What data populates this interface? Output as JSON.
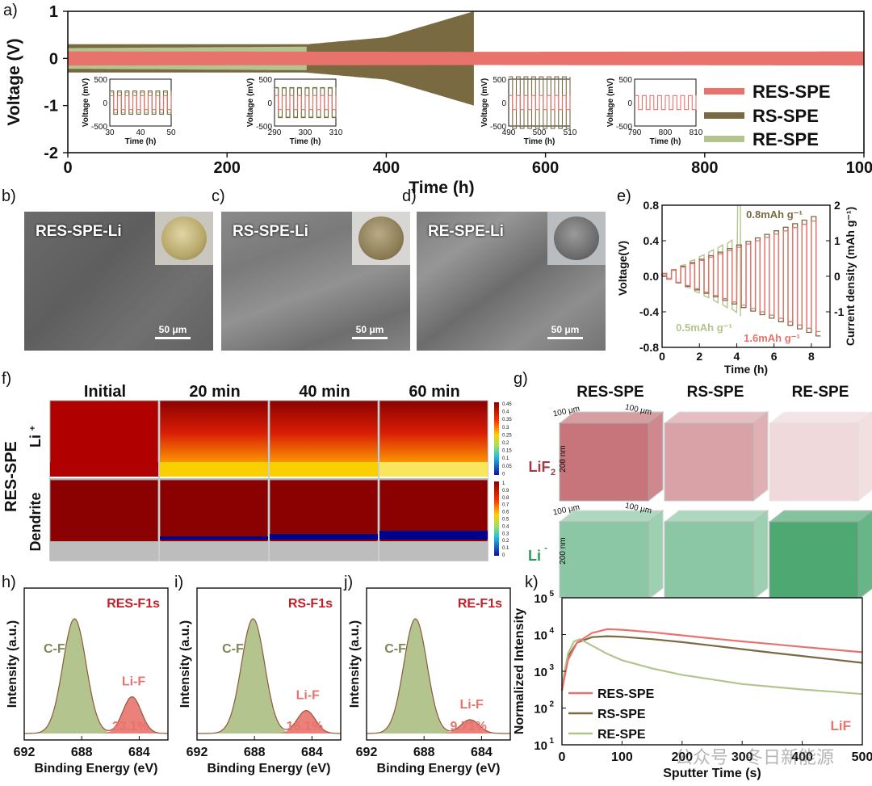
{
  "panel_labels": {
    "a": "a)",
    "b": "b)",
    "c": "c)",
    "d": "d)",
    "e": "e)",
    "f": "f)",
    "g": "g)",
    "h": "h)",
    "i": "i)",
    "j": "j)",
    "k": "k)"
  },
  "colors": {
    "res": "#e8736d",
    "rs": "#7a6a42",
    "re": "#b3c48e"
  },
  "chart_data": [
    {
      "id": "a",
      "type": "line",
      "xlabel": "Time (h)",
      "ylabel": "Voltage (V)",
      "xlim": [
        0,
        1000
      ],
      "ylim": [
        -2,
        1
      ],
      "xticks": [
        "0",
        "200",
        "400",
        "600",
        "800",
        "1000"
      ],
      "yticks": [
        "1",
        "0",
        "-1",
        "-2"
      ],
      "legend_position": "right",
      "series": [
        {
          "name": "RES-SPE",
          "duration_h": 1000,
          "amplitude_V": [
            [
              0,
              0.15
            ],
            [
              500,
              0.14
            ],
            [
              1000,
              0.15
            ]
          ]
        },
        {
          "name": "RS-SPE",
          "duration_h": 510,
          "amplitude_V": [
            [
              0,
              0.3
            ],
            [
              300,
              0.3
            ],
            [
              400,
              0.45
            ],
            [
              470,
              0.8
            ],
            [
              510,
              1.0
            ]
          ]
        },
        {
          "name": "RE-SPE",
          "duration_h": 300,
          "amplitude_V": [
            [
              0,
              0.22
            ],
            [
              300,
              0.25
            ]
          ]
        }
      ],
      "insets": [
        {
          "xlabel": "Time (h)",
          "ylabel": "Voltage (mV)",
          "xlim": [
            30,
            50
          ],
          "xticks": [
            "30",
            "40",
            "50"
          ],
          "yticks": [
            "500",
            "0",
            "-500"
          ],
          "amp_mV": {
            "RES-SPE": 150,
            "RS-SPE": 250,
            "RE-SPE": 220
          }
        },
        {
          "xlabel": "Time (h)",
          "ylabel": "Voltage (mV)",
          "xlim": [
            290,
            310
          ],
          "xticks": [
            "290",
            "300",
            "310"
          ],
          "yticks": [
            "500",
            "0",
            "-500"
          ],
          "amp_mV": {
            "RES-SPE": 150,
            "RS-SPE": 320,
            "RE-SPE": 300
          }
        },
        {
          "xlabel": "Time (h)",
          "ylabel": "Voltage (mV)",
          "xlim": [
            490,
            510
          ],
          "xticks": [
            "490",
            "500",
            "510"
          ],
          "yticks": [
            "500",
            "0",
            "-500"
          ],
          "amp_mV": {
            "RES-SPE": 150,
            "RS-SPE": 550
          }
        },
        {
          "xlabel": "Time (h)",
          "ylabel": "Voltage (mV)",
          "xlim": [
            790,
            810
          ],
          "xticks": [
            "790",
            "800",
            "810"
          ],
          "yticks": [
            "500",
            "0",
            "-500"
          ],
          "amp_mV": {
            "RES-SPE": 150
          }
        }
      ]
    },
    {
      "id": "e",
      "type": "line",
      "xlabel": "Time (h)",
      "ylabel": "Voltage(V)",
      "y2label": "Current density (mAh g⁻¹)",
      "xlim": [
        0,
        9
      ],
      "ylim": [
        -0.8,
        0.8
      ],
      "y2lim": [
        -2,
        2
      ],
      "xticks": [
        "0",
        "2",
        "4",
        "6",
        "8"
      ],
      "yticks": [
        "0.8",
        "0.4",
        "0.0",
        "-0.4",
        "-0.8"
      ],
      "y2ticks": [
        "2",
        "1",
        "0",
        "-1"
      ],
      "annotations": [
        "0.8mAh g⁻¹",
        "0.5mAh g⁻¹",
        "1.6mAh g⁻¹"
      ],
      "series": [
        {
          "name": "RES-SPE",
          "step_h": 0.5,
          "end_h": 8.6,
          "current_steps_mAh_g": [
            0.1,
            0.2,
            0.3,
            0.4,
            0.5,
            0.6,
            0.7,
            0.8,
            0.9,
            1.0,
            1.1,
            1.2,
            1.3,
            1.4,
            1.5,
            1.6
          ]
        },
        {
          "name": "RS-SPE",
          "end_h": 8.6
        },
        {
          "name": "RE-SPE",
          "end_h": 4.2
        }
      ]
    },
    {
      "id": "h",
      "type": "area",
      "title": "RES-F1s",
      "xlabel": "Binding Energy (eV)",
      "ylabel": "Intensity (a.u.)",
      "xlim": [
        692,
        682
      ],
      "xticks": [
        "692",
        "688",
        "684"
      ],
      "peaks": [
        {
          "name": "C-F",
          "center_eV": 688.5,
          "height": 1.0,
          "fwhm": 1.9
        },
        {
          "name": "Li-F",
          "center_eV": 684.5,
          "height": 0.32,
          "fwhm": 1.5
        }
      ],
      "percent": "23.1%"
    },
    {
      "id": "i",
      "type": "area",
      "title": "RS-F1s",
      "xlabel": "Binding Energy (eV)",
      "ylabel": "Intensity (a.u.)",
      "xlim": [
        692,
        682
      ],
      "xticks": [
        "692",
        "688",
        "684"
      ],
      "peaks": [
        {
          "name": "C-F",
          "center_eV": 688.1,
          "height": 1.0,
          "fwhm": 1.9
        },
        {
          "name": "Li-F",
          "center_eV": 684.4,
          "height": 0.2,
          "fwhm": 1.5
        }
      ],
      "percent": "16.1%"
    },
    {
      "id": "j",
      "type": "area",
      "title": "RE-F1s",
      "xlabel": "Binding Energy (eV)",
      "ylabel": "Intensity (a.u.)",
      "xlim": [
        692,
        682
      ],
      "xticks": [
        "692",
        "688",
        "684"
      ],
      "peaks": [
        {
          "name": "C-F",
          "center_eV": 688.6,
          "height": 1.0,
          "fwhm": 1.9
        },
        {
          "name": "Li-F",
          "center_eV": 684.8,
          "height": 0.12,
          "fwhm": 1.5
        }
      ],
      "percent": "9.71%"
    },
    {
      "id": "k",
      "type": "line",
      "scale": "log",
      "xlabel": "Sputter Time (s)",
      "ylabel": "Normalized Intensity",
      "xlim": [
        0,
        500
      ],
      "ylim": [
        10,
        100000
      ],
      "xticks": [
        "0",
        "100",
        "200",
        "300",
        "400",
        "500"
      ],
      "yticks_base": "10",
      "yticks_exp": [
        "5",
        "4",
        "3",
        "2",
        "1"
      ],
      "species": "LiF",
      "legend_position": "bottom-left",
      "series": [
        {
          "name": "RES-SPE",
          "x": [
            0,
            10,
            25,
            50,
            75,
            100,
            150,
            200,
            250,
            300,
            350,
            400,
            450,
            500
          ],
          "y": [
            300,
            2000,
            6000,
            11000,
            14000,
            13500,
            11500,
            9500,
            7800,
            6500,
            5500,
            4600,
            3900,
            3300
          ]
        },
        {
          "name": "RS-SPE",
          "x": [
            0,
            10,
            25,
            50,
            75,
            100,
            150,
            200,
            250,
            300,
            350,
            400,
            450,
            500
          ],
          "y": [
            300,
            2500,
            6000,
            8500,
            9000,
            8700,
            7500,
            6200,
            5000,
            4000,
            3200,
            2600,
            2100,
            1700
          ]
        },
        {
          "name": "RE-SPE",
          "x": [
            0,
            10,
            20,
            30,
            50,
            75,
            100,
            150,
            200,
            250,
            300,
            350,
            400,
            450,
            500
          ],
          "y": [
            400,
            3000,
            6500,
            7500,
            5000,
            3000,
            2000,
            1200,
            800,
            600,
            450,
            380,
            320,
            280,
            240
          ]
        }
      ]
    }
  ],
  "sem": [
    {
      "label": "RES-SPE-Li",
      "scale": "50 μm"
    },
    {
      "label": "RS-SPE-Li",
      "scale": "50 μm"
    },
    {
      "label": "RE-SPE-Li",
      "scale": "50 μm"
    }
  ],
  "sim": {
    "columns": [
      "Initial",
      "20 min",
      "40 min",
      "60 min"
    ],
    "row_li": "Li",
    "row_li_sup": "+",
    "row_dendrite": "Dendrite",
    "side_label": "RES-SPE",
    "colorbar_li": [
      "0.45",
      "0.4",
      "0.35",
      "0.3",
      "0.25",
      "0.2",
      "0.15",
      "0.1",
      "0.05",
      "0"
    ],
    "colorbar_den": [
      "1",
      "0.9",
      "0.8",
      "0.7",
      "0.6",
      "0.5",
      "0.4",
      "0.3",
      "0.2",
      "0.1",
      "0"
    ]
  },
  "tof": {
    "columns": [
      "RES-SPE",
      "RS-SPE",
      "RE-SPE"
    ],
    "row1_species": "LiF",
    "row1_sub": "2",
    "row1_sup": "-",
    "row2_species": "Li",
    "row2_sup": "-",
    "dim_w": "100 μm",
    "dim_d": "100 μm",
    "dim_h": "200 nm"
  },
  "watermark": "公众号 · 冬日新能源"
}
